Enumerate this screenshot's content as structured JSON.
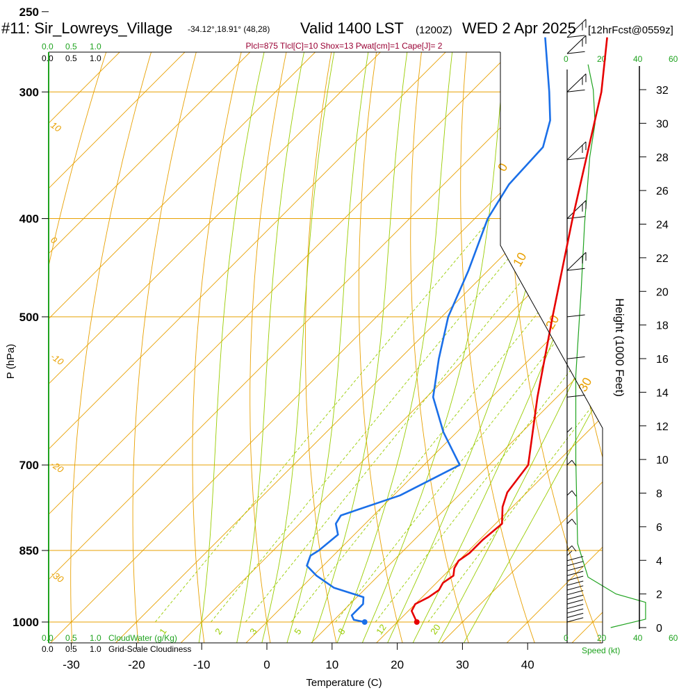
{
  "header": {
    "station": "#11: Sir_Lowreys_Village",
    "coords": "-34.12°,18.91° (48,28)",
    "valid": "Valid 1400 LST",
    "utc": "(1200Z)",
    "date": "WED 2 Apr 2025",
    "fcst": "[12hrFcst@0559z]"
  },
  "indices": "Plcl=875 Tlcl[C]=10 Shox=13 Pwat[cm]=1 Cape[J]= 2",
  "cloud_scales": {
    "top_green": [
      "0.0",
      "0.5",
      "1.0"
    ],
    "top_black": [
      "0.0",
      "0.5",
      "1.0"
    ],
    "bottom_green": [
      "0.0",
      "0.5",
      "1.0"
    ],
    "bottom_black": [
      "0.0",
      "0.5",
      "1.0"
    ],
    "cloudwater_label": "CloudWater (g/Kg)",
    "cloudiness_label": "Grid-Scale Cloudiness"
  },
  "wind_scale": {
    "top": [
      "0",
      "20",
      "40",
      "60"
    ],
    "bottom": [
      "0",
      "20",
      "40",
      "60"
    ],
    "label": "Speed (kt)"
  },
  "colors": {
    "isobar": "#e8a000",
    "isotherm": "#e8a000",
    "dry_adiabat": "#e8a000",
    "moist_adiabat": "#99cc00",
    "mixing_ratio": "#99cc00",
    "temperature": "#e60000",
    "dewpoint": "#1a6fe8",
    "wind_profile": "#1fa31f"
  },
  "chart_data": {
    "type": "line",
    "title": "#11: Sir_Lowreys_Village",
    "xlabel": "Temperature (C)",
    "ylabel": "P (hPa)",
    "y2label": "Height (1000 Feet)",
    "xlim": [
      -35,
      45
    ],
    "ylim": [
      1020,
      250
    ],
    "x_ticks": [
      -30,
      -20,
      -10,
      0,
      10,
      20,
      30,
      40
    ],
    "p_ticks": [
      250,
      300,
      400,
      500,
      700,
      850,
      1000
    ],
    "height_ticks": [
      0,
      2,
      4,
      6,
      8,
      10,
      12,
      14,
      16,
      18,
      20,
      22,
      24,
      26,
      28,
      30,
      32
    ],
    "series": [
      {
        "key": "temperature",
        "points": [
          [
            1000,
            23.0
          ],
          [
            990,
            22.0
          ],
          [
            975,
            20.5
          ],
          [
            960,
            20.0
          ],
          [
            945,
            21.0
          ],
          [
            930,
            21.5
          ],
          [
            915,
            21.0
          ],
          [
            900,
            21.5
          ],
          [
            885,
            20.5
          ],
          [
            870,
            20.0
          ],
          [
            855,
            20.5
          ],
          [
            830,
            20.5
          ],
          [
            800,
            21.0
          ],
          [
            770,
            18.5
          ],
          [
            745,
            17.0
          ],
          [
            700,
            16.0
          ],
          [
            600,
            7.0
          ],
          [
            500,
            -3.0
          ],
          [
            400,
            -15.0
          ],
          [
            300,
            -30.0
          ],
          [
            265,
            -37.5
          ]
        ]
      },
      {
        "key": "dewpoint",
        "points": [
          [
            1000,
            15.0
          ],
          [
            995,
            13.0
          ],
          [
            985,
            12.0
          ],
          [
            960,
            12.0
          ],
          [
            945,
            11.0
          ],
          [
            925,
            5.0
          ],
          [
            900,
            0.5
          ],
          [
            880,
            -2.5
          ],
          [
            860,
            -3.5
          ],
          [
            850,
            -3.0
          ],
          [
            820,
            -2.5
          ],
          [
            800,
            -4.5
          ],
          [
            785,
            -5.0
          ],
          [
            750,
            1.0
          ],
          [
            700,
            5.5
          ],
          [
            650,
            -2.0
          ],
          [
            600,
            -9.0
          ],
          [
            550,
            -14.0
          ],
          [
            500,
            -19.0
          ],
          [
            450,
            -23.0
          ],
          [
            400,
            -28.0
          ],
          [
            370,
            -30.0
          ],
          [
            340,
            -30.5
          ],
          [
            320,
            -33.5
          ],
          [
            300,
            -38.0
          ],
          [
            265,
            -47.0
          ]
        ]
      }
    ],
    "surface_points": {
      "temperature": 23.0,
      "dewpoint": 15.0
    },
    "isotherm_labels": [
      -20,
      -10,
      0,
      10,
      20,
      30
    ],
    "mixing_ratio_labels": [
      "1",
      "2",
      "3",
      "5",
      "8",
      "12",
      "20"
    ],
    "mixing_ratios_gkg": [
      1,
      2,
      3,
      5,
      8,
      12,
      20
    ],
    "dry_adiabat_labels": [
      "10",
      "0",
      "-10",
      "-20",
      "-30"
    ],
    "wind_speed_profile_kt": [
      [
        0,
        25
      ],
      [
        500,
        45
      ],
      [
        1500,
        45
      ],
      [
        2000,
        28
      ],
      [
        3000,
        12
      ],
      [
        5000,
        6
      ],
      [
        10000,
        5
      ],
      [
        15000,
        5
      ],
      [
        20000,
        8
      ],
      [
        24000,
        10
      ],
      [
        28000,
        13
      ],
      [
        30000,
        16
      ],
      [
        32000,
        15
      ],
      [
        33500,
        12
      ]
    ]
  }
}
